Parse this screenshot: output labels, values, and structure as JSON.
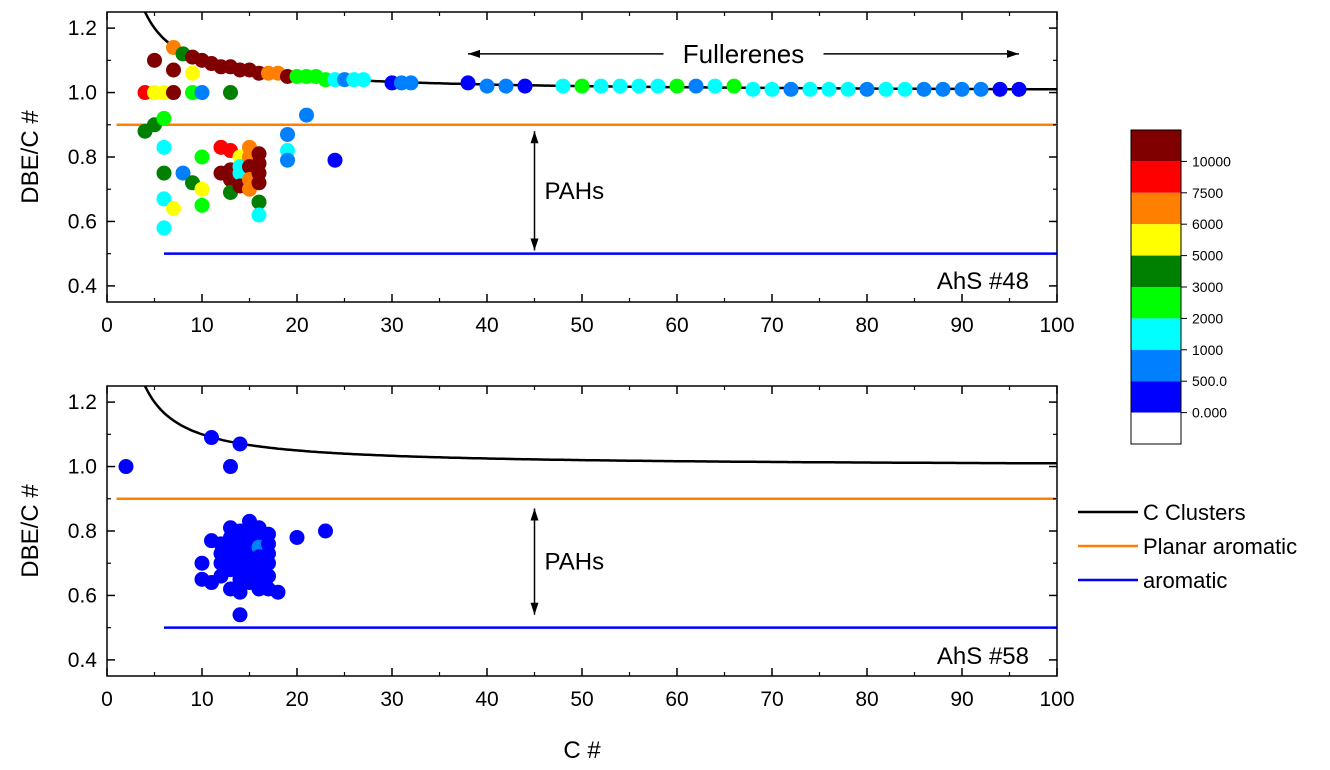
{
  "chart_data": [
    {
      "type": "scatter",
      "panel": "top",
      "label": "AhS #48",
      "xlabel": "",
      "ylabel": "DBE/C #",
      "xlim": [
        0,
        100
      ],
      "ylim": [
        0.35,
        1.25
      ],
      "x_ticks": [
        "0",
        "10",
        "20",
        "30",
        "40",
        "50",
        "60",
        "70",
        "80",
        "90",
        "100"
      ],
      "y_ticks": [
        "0.4",
        "0.6",
        "0.8",
        "1.0",
        "1.2"
      ],
      "annotations": {
        "fullerenes": "Fullerenes",
        "fullerenes_x_range": [
          38,
          96
        ],
        "fullerenes_y": 1.12,
        "pahs": "PAHs",
        "pahs_x": 45,
        "pahs_y_range": [
          0.51,
          0.88
        ]
      },
      "lines": {
        "c_clusters": "1 + 1/x",
        "planar_aromatic": {
          "y": 0.9,
          "x_range": [
            1,
            100
          ]
        },
        "aromatic": {
          "y": 0.5,
          "x_range": [
            6,
            100
          ]
        }
      },
      "points": [
        [
          4,
          1.0,
          "#ff0000"
        ],
        [
          5,
          1.1,
          "#800000"
        ],
        [
          5,
          1.0,
          "#ffff00"
        ],
        [
          6,
          1.0,
          "#ffff00"
        ],
        [
          7,
          1.07,
          "#800000"
        ],
        [
          7,
          1.14,
          "#ff8000"
        ],
        [
          7,
          1.0,
          "#800000"
        ],
        [
          8,
          1.12,
          "#008000"
        ],
        [
          9,
          1.11,
          "#800000"
        ],
        [
          10,
          1.1,
          "#800000"
        ],
        [
          11,
          1.09,
          "#800000"
        ],
        [
          12,
          1.08,
          "#800000"
        ],
        [
          13,
          1.08,
          "#800000"
        ],
        [
          14,
          1.07,
          "#800000"
        ],
        [
          15,
          1.07,
          "#800000"
        ],
        [
          16,
          1.06,
          "#800000"
        ],
        [
          17,
          1.06,
          "#ff8000"
        ],
        [
          18,
          1.06,
          "#ff8000"
        ],
        [
          19,
          1.05,
          "#800000"
        ],
        [
          20,
          1.05,
          "#00ff00"
        ],
        [
          21,
          1.05,
          "#00ff00"
        ],
        [
          22,
          1.05,
          "#00ff00"
        ],
        [
          23,
          1.04,
          "#00ff00"
        ],
        [
          24,
          1.04,
          "#00ffff"
        ],
        [
          25,
          1.04,
          "#0080ff"
        ],
        [
          26,
          1.04,
          "#00ffff"
        ],
        [
          27,
          1.04,
          "#00ffff"
        ],
        [
          30,
          1.03,
          "#0000ff"
        ],
        [
          31,
          1.03,
          "#0080ff"
        ],
        [
          32,
          1.03,
          "#0080ff"
        ],
        [
          38,
          1.03,
          "#0000ff"
        ],
        [
          40,
          1.02,
          "#0080ff"
        ],
        [
          42,
          1.02,
          "#0080ff"
        ],
        [
          44,
          1.02,
          "#0000ff"
        ],
        [
          48,
          1.02,
          "#00ffff"
        ],
        [
          50,
          1.02,
          "#00ff00"
        ],
        [
          52,
          1.02,
          "#00ffff"
        ],
        [
          54,
          1.02,
          "#00ffff"
        ],
        [
          56,
          1.02,
          "#00ffff"
        ],
        [
          58,
          1.02,
          "#00ffff"
        ],
        [
          60,
          1.02,
          "#00ff00"
        ],
        [
          62,
          1.02,
          "#0080ff"
        ],
        [
          64,
          1.02,
          "#00ffff"
        ],
        [
          66,
          1.02,
          "#00ff00"
        ],
        [
          68,
          1.01,
          "#00ffff"
        ],
        [
          70,
          1.01,
          "#00ffff"
        ],
        [
          72,
          1.01,
          "#0080ff"
        ],
        [
          74,
          1.01,
          "#00ffff"
        ],
        [
          76,
          1.01,
          "#00ffff"
        ],
        [
          78,
          1.01,
          "#00ffff"
        ],
        [
          80,
          1.01,
          "#0080ff"
        ],
        [
          82,
          1.01,
          "#00ffff"
        ],
        [
          84,
          1.01,
          "#00ffff"
        ],
        [
          86,
          1.01,
          "#0080ff"
        ],
        [
          88,
          1.01,
          "#0080ff"
        ],
        [
          90,
          1.01,
          "#0080ff"
        ],
        [
          92,
          1.01,
          "#0080ff"
        ],
        [
          94,
          1.01,
          "#0000ff"
        ],
        [
          96,
          1.01,
          "#0000ff"
        ],
        [
          9,
          1.06,
          "#ffff00"
        ],
        [
          9,
          1.0,
          "#00ff00"
        ],
        [
          10,
          1.0,
          "#0080ff"
        ],
        [
          13,
          1.0,
          "#008000"
        ],
        [
          4,
          0.88,
          "#008000"
        ],
        [
          5,
          0.9,
          "#008000"
        ],
        [
          6,
          0.92,
          "#00ff00"
        ],
        [
          6,
          0.83,
          "#00ffff"
        ],
        [
          6,
          0.75,
          "#008000"
        ],
        [
          6,
          0.67,
          "#00ffff"
        ],
        [
          6,
          0.58,
          "#00ffff"
        ],
        [
          7,
          0.64,
          "#ffff00"
        ],
        [
          8,
          0.75,
          "#0080ff"
        ],
        [
          9,
          0.72,
          "#008000"
        ],
        [
          10,
          0.8,
          "#00ff00"
        ],
        [
          10,
          0.7,
          "#ffff00"
        ],
        [
          10,
          0.65,
          "#00ff00"
        ],
        [
          12,
          0.83,
          "#ff0000"
        ],
        [
          12,
          0.75,
          "#800000"
        ],
        [
          13,
          0.82,
          "#ff0000"
        ],
        [
          13,
          0.76,
          "#800000"
        ],
        [
          13,
          0.73,
          "#800000"
        ],
        [
          13,
          0.69,
          "#008000"
        ],
        [
          14,
          0.8,
          "#ffff00"
        ],
        [
          14,
          0.77,
          "#00ffff"
        ],
        [
          14,
          0.75,
          "#00ffff"
        ],
        [
          14,
          0.71,
          "#800000"
        ],
        [
          15,
          0.83,
          "#ff8000"
        ],
        [
          15,
          0.8,
          "#ff8000"
        ],
        [
          15,
          0.77,
          "#800000"
        ],
        [
          15,
          0.73,
          "#ff8000"
        ],
        [
          15,
          0.7,
          "#ff8000"
        ],
        [
          16,
          0.81,
          "#800000"
        ],
        [
          16,
          0.78,
          "#800000"
        ],
        [
          16,
          0.75,
          "#800000"
        ],
        [
          16,
          0.72,
          "#800000"
        ],
        [
          16,
          0.66,
          "#008000"
        ],
        [
          16,
          0.62,
          "#00ffff"
        ],
        [
          19,
          0.87,
          "#0080ff"
        ],
        [
          19,
          0.82,
          "#00ffff"
        ],
        [
          19,
          0.79,
          "#0080ff"
        ],
        [
          21,
          0.93,
          "#0080ff"
        ],
        [
          24,
          0.79,
          "#0000ff"
        ]
      ]
    },
    {
      "type": "scatter",
      "panel": "bottom",
      "label": "AhS #58",
      "xlabel": "C #",
      "ylabel": "DBE/C #",
      "xlim": [
        0,
        100
      ],
      "ylim": [
        0.35,
        1.25
      ],
      "x_ticks": [
        "0",
        "10",
        "20",
        "30",
        "40",
        "50",
        "60",
        "70",
        "80",
        "90",
        "100"
      ],
      "y_ticks": [
        "0.4",
        "0.6",
        "0.8",
        "1.0",
        "1.2"
      ],
      "annotations": {
        "pahs": "PAHs",
        "pahs_x": 45,
        "pahs_y_range": [
          0.54,
          0.87
        ]
      },
      "lines": {
        "c_clusters": "1 + 1/x",
        "planar_aromatic": {
          "y": 0.9,
          "x_range": [
            1,
            100
          ]
        },
        "aromatic": {
          "y": 0.5,
          "x_range": [
            6,
            100
          ]
        }
      },
      "points": [
        [
          2,
          1.0,
          "#0000ff"
        ],
        [
          11,
          1.09,
          "#0000ff"
        ],
        [
          13,
          1.0,
          "#0000ff"
        ],
        [
          14,
          1.07,
          "#0000ff"
        ],
        [
          10,
          0.7,
          "#0000ff"
        ],
        [
          10,
          0.65,
          "#0000ff"
        ],
        [
          11,
          0.77,
          "#0000ff"
        ],
        [
          11,
          0.64,
          "#0000ff"
        ],
        [
          12,
          0.76,
          "#0000ff"
        ],
        [
          12,
          0.73,
          "#0000ff"
        ],
        [
          12,
          0.7,
          "#0000ff"
        ],
        [
          12,
          0.66,
          "#0000ff"
        ],
        [
          13,
          0.81,
          "#0000ff"
        ],
        [
          13,
          0.78,
          "#0000ff"
        ],
        [
          13,
          0.75,
          "#0000ff"
        ],
        [
          13,
          0.72,
          "#0000ff"
        ],
        [
          13,
          0.68,
          "#0000ff"
        ],
        [
          13,
          0.62,
          "#0000ff"
        ],
        [
          14,
          0.8,
          "#0000ff"
        ],
        [
          14,
          0.76,
          "#0000ff"
        ],
        [
          14,
          0.72,
          "#0000ff"
        ],
        [
          14,
          0.69,
          "#0000ff"
        ],
        [
          14,
          0.65,
          "#0000ff"
        ],
        [
          14,
          0.61,
          "#0000ff"
        ],
        [
          14,
          0.54,
          "#0000ff"
        ],
        [
          15,
          0.83,
          "#0000ff"
        ],
        [
          15,
          0.79,
          "#0000ff"
        ],
        [
          15,
          0.75,
          "#0000ff"
        ],
        [
          15,
          0.71,
          "#0000ff"
        ],
        [
          15,
          0.68,
          "#0000ff"
        ],
        [
          15,
          0.64,
          "#0000ff"
        ],
        [
          16,
          0.81,
          "#0000ff"
        ],
        [
          16,
          0.78,
          "#0000ff"
        ],
        [
          16,
          0.75,
          "#0080ff"
        ],
        [
          16,
          0.72,
          "#0000ff"
        ],
        [
          16,
          0.68,
          "#0000ff"
        ],
        [
          16,
          0.65,
          "#0000ff"
        ],
        [
          16,
          0.62,
          "#0000ff"
        ],
        [
          17,
          0.79,
          "#0000ff"
        ],
        [
          17,
          0.76,
          "#0000ff"
        ],
        [
          17,
          0.73,
          "#0000ff"
        ],
        [
          17,
          0.7,
          "#0000ff"
        ],
        [
          17,
          0.66,
          "#0000ff"
        ],
        [
          17,
          0.62,
          "#0000ff"
        ],
        [
          18,
          0.61,
          "#0000ff"
        ],
        [
          20,
          0.78,
          "#0000ff"
        ],
        [
          23,
          0.8,
          "#0000ff"
        ]
      ]
    }
  ],
  "colorbar": {
    "labels": [
      "10000",
      "7500",
      "6000",
      "5000",
      "3000",
      "2000",
      "1000",
      "500.0",
      "0.000"
    ],
    "colors": [
      "#800000",
      "#ff0000",
      "#ff8000",
      "#ffff00",
      "#008000",
      "#00ff00",
      "#00ffff",
      "#0080ff",
      "#0000ff",
      "#ffffff"
    ]
  },
  "legend": {
    "placement": "right",
    "entries": [
      {
        "label": "C Clusters",
        "color": "#000000"
      },
      {
        "label": "Planar aromatic",
        "color": "#ff8000"
      },
      {
        "label": "aromatic",
        "color": "#0000ff"
      }
    ]
  },
  "colors": {
    "c_clusters": "#000000",
    "planar_aromatic": "#ff8000",
    "aromatic": "#0000ff"
  }
}
